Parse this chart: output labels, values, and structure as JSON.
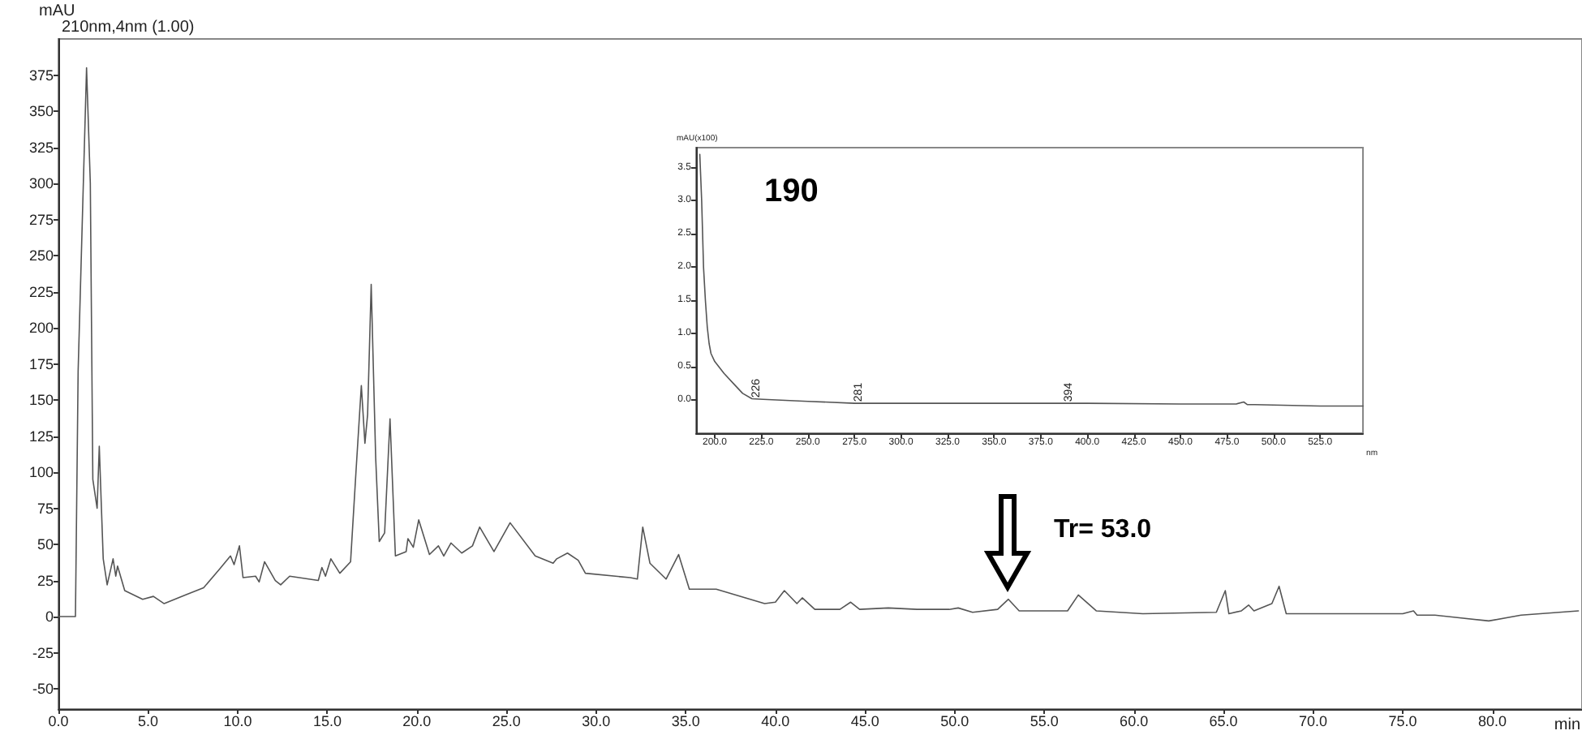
{
  "chart_data": [
    {
      "type": "line",
      "subtitle": "210nm,4nm (1.00)",
      "ylabel": "mAU",
      "xlabel": "min",
      "color": "#555555",
      "grid": false,
      "x": [
        0,
        0.95,
        1.1,
        1.57,
        1.78,
        1.92,
        2.16,
        2.28,
        2.4,
        2.5,
        2.72,
        3.05,
        3.2,
        3.3,
        3.7,
        4.7,
        5.3,
        5.9,
        7.1,
        8.1,
        9.0,
        9.6,
        9.8,
        10.1,
        10.3,
        11.0,
        11.2,
        11.5,
        12.1,
        12.4,
        12.9,
        14.5,
        14.7,
        14.9,
        15.2,
        15.7,
        16.3,
        16.6,
        16.9,
        17.1,
        17.25,
        17.45,
        17.7,
        17.9,
        18.2,
        18.5,
        18.8,
        19.4,
        19.5,
        19.8,
        20.1,
        20.7,
        21.2,
        21.5,
        21.9,
        22.5,
        23.1,
        23.5,
        24.3,
        25.2,
        26.6,
        27.6,
        27.8,
        28.4,
        29.0,
        29.4,
        31.9,
        32.3,
        32.6,
        33.0,
        33.9,
        34.6,
        35.2,
        36.7,
        39.4,
        40.0,
        40.5,
        41.2,
        41.5,
        42.2,
        43.6,
        44.2,
        44.7,
        46.3,
        47.9,
        49.7,
        50.2,
        51.0,
        52.4,
        53.0,
        53.6,
        56.3,
        56.9,
        57.9,
        60.5,
        64.6,
        65.1,
        65.3,
        66.0,
        66.4,
        66.7,
        67.7,
        68.1,
        68.5,
        75.0,
        75.6,
        75.8,
        76.8,
        79.8,
        81.6,
        84.8
      ],
      "values": [
        0,
        0,
        170,
        380,
        300,
        95,
        75,
        118,
        75,
        40,
        22,
        40,
        28,
        35,
        18,
        12,
        14,
        9,
        15,
        20,
        33,
        42,
        36,
        49,
        27,
        28,
        24,
        38,
        25,
        22,
        28,
        25,
        34,
        28,
        40,
        30,
        38,
        100,
        160,
        120,
        140,
        230,
        110,
        52,
        58,
        137,
        42,
        45,
        54,
        48,
        67,
        43,
        49,
        42,
        51,
        44,
        49,
        62,
        45,
        65,
        42,
        37,
        40,
        44,
        39,
        30,
        27,
        26,
        62,
        37,
        26,
        43,
        19,
        19,
        9,
        10,
        18,
        9,
        13,
        5,
        5,
        10,
        5,
        6,
        5,
        5,
        6,
        3,
        5,
        12,
        4,
        4,
        15,
        4,
        2,
        3,
        18,
        2,
        4,
        8,
        4,
        9,
        21,
        2,
        2,
        4,
        1,
        1,
        -3,
        1,
        4
      ],
      "xlim": [
        0,
        85
      ],
      "xticks": [
        {
          "value": 0,
          "label": "0.0"
        },
        {
          "value": 5,
          "label": "5.0"
        },
        {
          "value": 10,
          "label": "10.0"
        },
        {
          "value": 15,
          "label": "15.0"
        },
        {
          "value": 20,
          "label": "20.0"
        },
        {
          "value": 25,
          "label": "25.0"
        },
        {
          "value": 30,
          "label": "30.0"
        },
        {
          "value": 35,
          "label": "35.0"
        },
        {
          "value": 40,
          "label": "40.0"
        },
        {
          "value": 45,
          "label": "45.0"
        },
        {
          "value": 50,
          "label": "50.0"
        },
        {
          "value": 55,
          "label": "55.0"
        },
        {
          "value": 60,
          "label": "60.0"
        },
        {
          "value": 65,
          "label": "65.0"
        },
        {
          "value": 70,
          "label": "70.0"
        },
        {
          "value": 75,
          "label": "75.0"
        },
        {
          "value": 80,
          "label": "80.0"
        }
      ],
      "ylim": [
        -64,
        400
      ],
      "yticks": [
        -50,
        -25,
        0,
        25,
        50,
        75,
        100,
        125,
        150,
        175,
        200,
        225,
        250,
        275,
        300,
        325,
        350,
        375
      ],
      "annotations": [
        {
          "text": "Tr= 53.0",
          "x": 53.0,
          "y": 12
        }
      ]
    },
    {
      "type": "line",
      "ylabel": "mAU(x100)",
      "xlabel": "nm",
      "color": "#555555",
      "grid": false,
      "x": [
        192,
        193,
        194,
        195,
        196,
        197,
        198,
        200,
        205,
        210,
        215,
        220,
        226,
        250,
        275,
        300,
        350,
        400,
        450,
        480,
        484,
        486,
        490,
        525,
        548
      ],
      "values": [
        3.7,
        3.0,
        2.0,
        1.5,
        1.1,
        0.85,
        0.7,
        0.58,
        0.4,
        0.25,
        0.1,
        0.02,
        0.01,
        -0.02,
        -0.05,
        -0.05,
        -0.05,
        -0.05,
        -0.06,
        -0.06,
        -0.03,
        -0.07,
        -0.07,
        -0.09,
        -0.09
      ],
      "xlim": [
        190,
        548
      ],
      "xticks": [
        {
          "value": 200,
          "label": "200.0"
        },
        {
          "value": 225,
          "label": "225.0"
        },
        {
          "value": 250,
          "label": "250.0"
        },
        {
          "value": 275,
          "label": "275.0"
        },
        {
          "value": 300,
          "label": "300.0"
        },
        {
          "value": 325,
          "label": "325.0"
        },
        {
          "value": 350,
          "label": "350.0"
        },
        {
          "value": 375,
          "label": "375.0"
        },
        {
          "value": 400,
          "label": "400.0"
        },
        {
          "value": 425,
          "label": "425.0"
        },
        {
          "value": 450,
          "label": "450.0"
        },
        {
          "value": 475,
          "label": "475.0"
        },
        {
          "value": 500,
          "label": "500.0"
        },
        {
          "value": 525,
          "label": "525.0"
        }
      ],
      "ylim": [
        -0.5,
        3.8
      ],
      "yticks": [
        {
          "value": 0,
          "label": "0.0"
        },
        {
          "value": 0.5,
          "label": "0.5"
        },
        {
          "value": 1,
          "label": "1.0"
        },
        {
          "value": 1.5,
          "label": "1.5"
        },
        {
          "value": 2,
          "label": "2.0"
        },
        {
          "value": 2.5,
          "label": "2.5"
        },
        {
          "value": 3,
          "label": "3.0"
        },
        {
          "value": 3.5,
          "label": "3.5"
        }
      ],
      "annotations": [
        "190",
        {
          "text": "226",
          "x": 226,
          "y": 0.01
        },
        {
          "text": "281",
          "x": 281,
          "y": -0.05
        },
        {
          "text": "394",
          "x": 394,
          "y": -0.05
        }
      ]
    }
  ]
}
